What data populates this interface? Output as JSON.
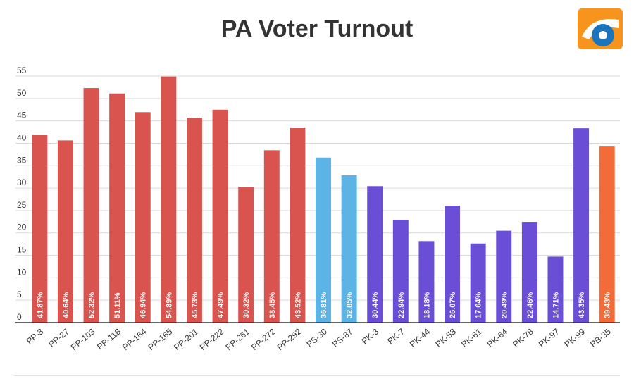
{
  "title": "PA Voter Turnout",
  "logo": {
    "icon": "geo-news-logo-icon",
    "colors": [
      "#f7941d",
      "#1c75bc"
    ]
  },
  "colors": {
    "PP": "#d9534f",
    "PS": "#5bb4e5",
    "PK": "#6a4fd6",
    "PB": "#f26c3a",
    "grid": "#d9d9d9",
    "axis": "#333333"
  },
  "chart_data": {
    "type": "bar",
    "title": "PA Voter Turnout",
    "xlabel": "",
    "ylabel": "",
    "ylim": [
      0,
      55
    ],
    "yticks": [
      0,
      5,
      10,
      15,
      20,
      25,
      30,
      35,
      40,
      45,
      50,
      55
    ],
    "grid": true,
    "categories": [
      "PP-3",
      "PP-27",
      "PP-103",
      "PP-118",
      "PP-164",
      "PP-165",
      "PP-201",
      "PP-222",
      "PP-261",
      "PP-272",
      "PP-292",
      "PS-30",
      "PS-87",
      "PK-3",
      "PK-7",
      "PK-44",
      "PK-53",
      "PK-61",
      "PK-64",
      "PK-78",
      "PK-97",
      "PK-99",
      "PB-35"
    ],
    "values": [
      41.87,
      40.64,
      52.32,
      51.11,
      46.94,
      54.89,
      45.73,
      47.49,
      30.32,
      38.45,
      43.52,
      36.81,
      32.85,
      30.44,
      22.94,
      18.18,
      26.07,
      17.64,
      20.49,
      22.46,
      14.71,
      43.35,
      39.43
    ],
    "labels": [
      "41.87%",
      "40.64%",
      "52.32%",
      "51.11%",
      "46.94%",
      "54.89%",
      "45.73%",
      "47.49%",
      "30.32%",
      "38.45%",
      "43.52%",
      "36.81%",
      "32.85%",
      "30.44%",
      "22.94%",
      "18.18%",
      "26.07%",
      "17.64%",
      "20.49%",
      "22.46%",
      "14.71%",
      "43.35%",
      "39.43%"
    ],
    "groups": [
      "PP",
      "PP",
      "PP",
      "PP",
      "PP",
      "PP",
      "PP",
      "PP",
      "PP",
      "PP",
      "PP",
      "PS",
      "PS",
      "PK",
      "PK",
      "PK",
      "PK",
      "PK",
      "PK",
      "PK",
      "PK",
      "PK",
      "PB"
    ]
  }
}
